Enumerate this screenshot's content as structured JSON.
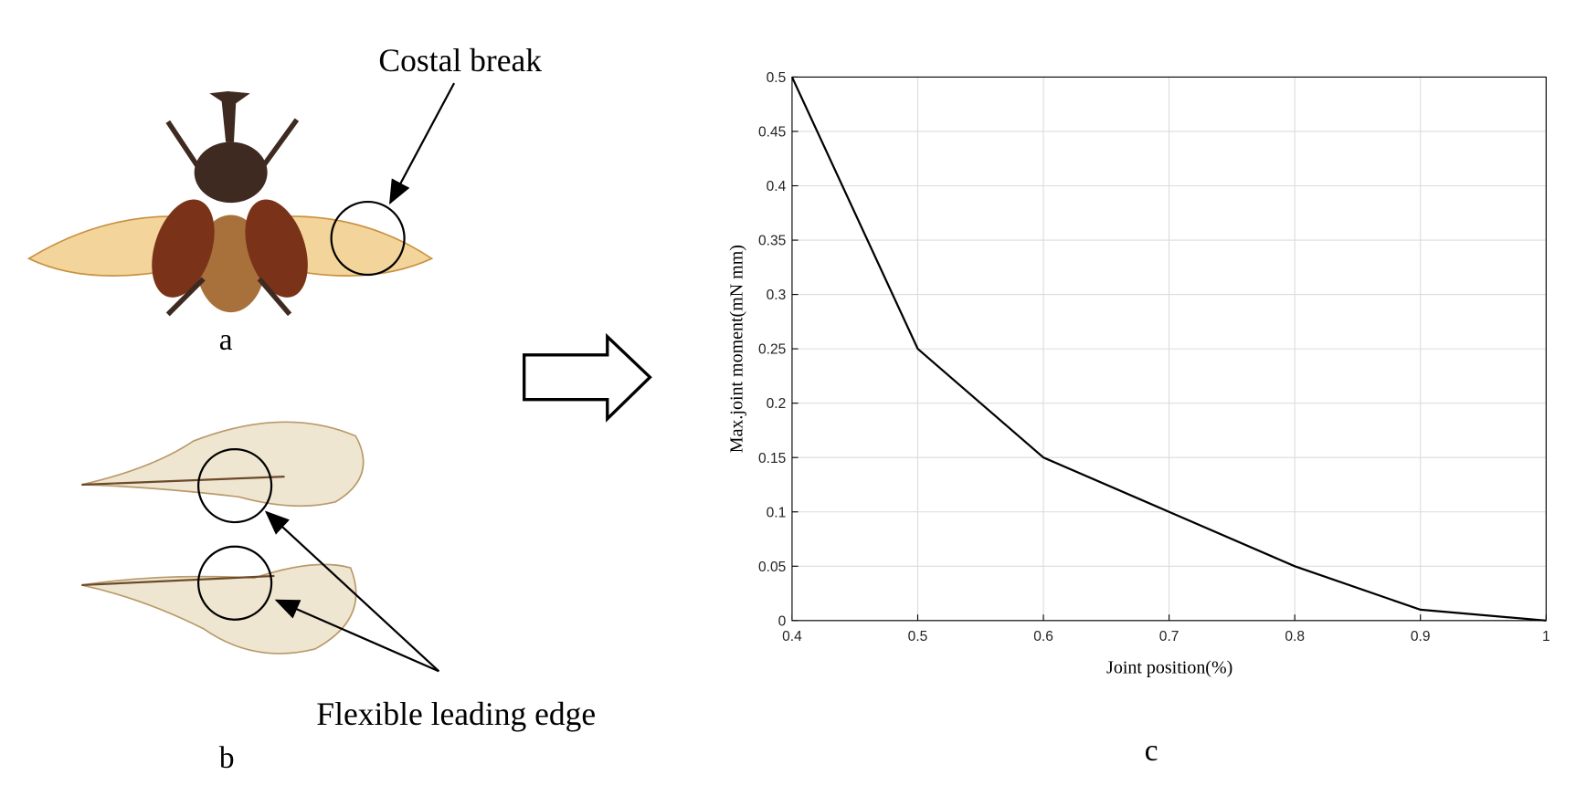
{
  "chart_data": {
    "type": "line",
    "x": [
      0.4,
      0.5,
      0.6,
      0.7,
      0.8,
      0.9,
      1
    ],
    "values": [
      0.5,
      0.25,
      0.15,
      0.1,
      0.05,
      0.01,
      0
    ],
    "color": "#000000",
    "xlabel": "Joint position(%)",
    "ylabel": "Max.joint moment(mN mm)",
    "xlim": [
      0.4,
      1
    ],
    "ylim": [
      0,
      0.5
    ],
    "xticks": [
      0.4,
      0.5,
      0.6,
      0.7,
      0.8,
      0.9,
      1
    ],
    "yticks": [
      0,
      0.05,
      0.1,
      0.15,
      0.2,
      0.25,
      0.3,
      0.35,
      0.4,
      0.45,
      0.5
    ],
    "grid": true
  },
  "labels": {
    "costal_break": "Costal break",
    "panel_a": "a",
    "flexible_edge": "Flexible leading edge",
    "panel_b": "b",
    "panel_c": "c"
  }
}
